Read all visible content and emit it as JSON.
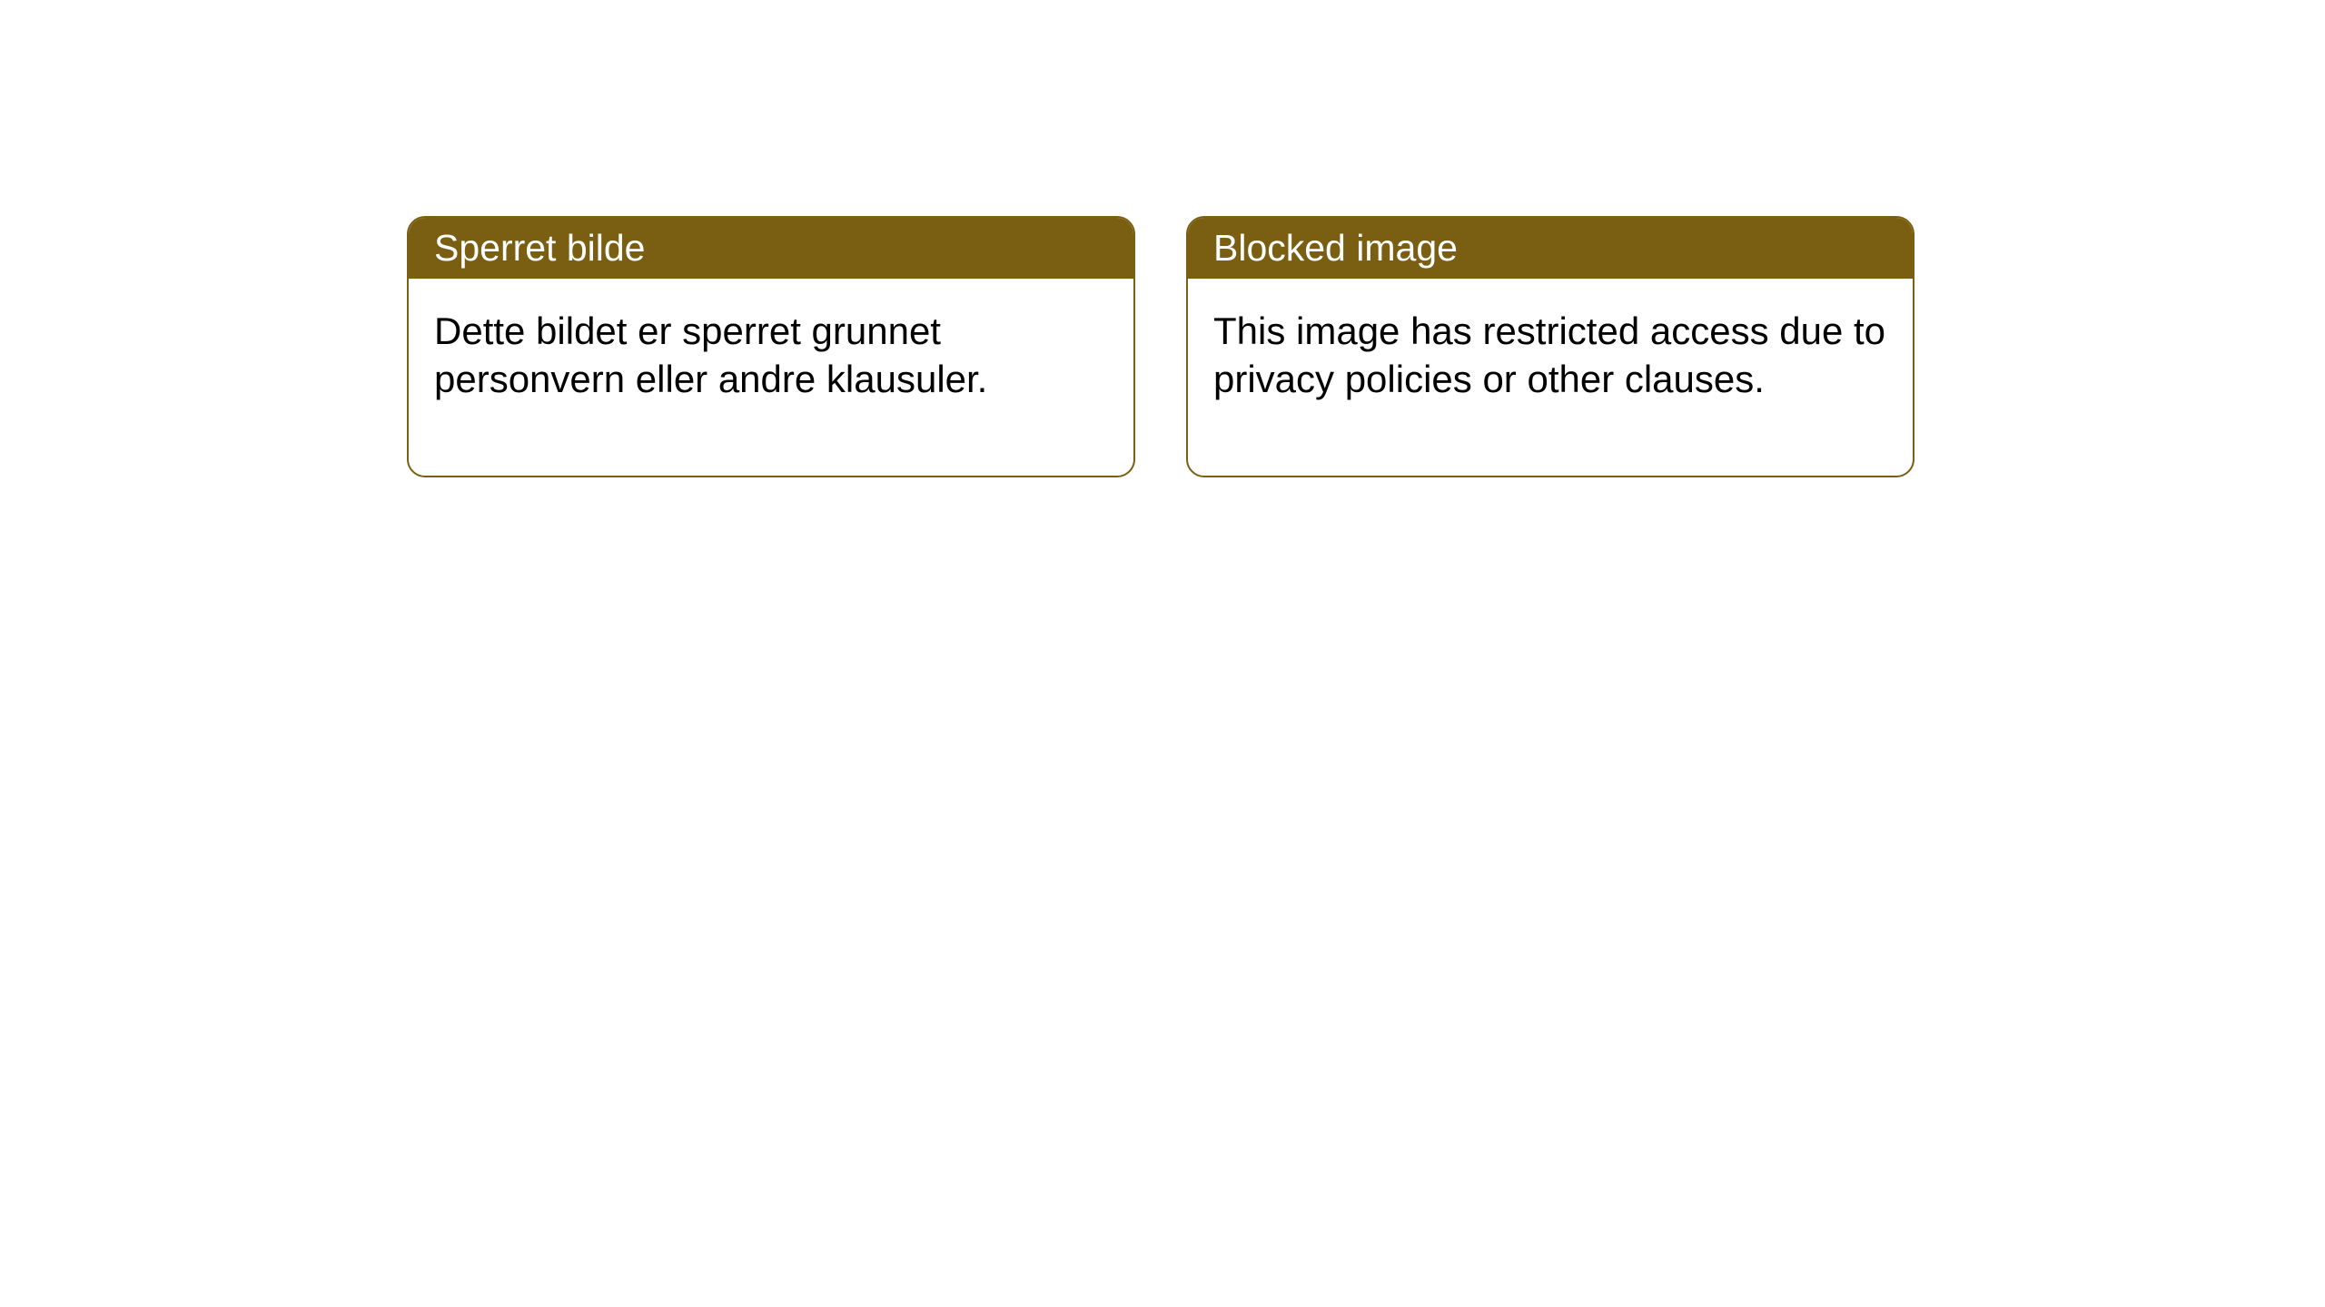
{
  "cards": [
    {
      "title": "Sperret bilde",
      "body": "Dette bildet er sperret grunnet personvern eller andre klausuler."
    },
    {
      "title": "Blocked image",
      "body": "This image has restricted access due to privacy policies or other clauses."
    }
  ],
  "styles": {
    "header_bg": "#7a5f13",
    "header_text_color": "#ffffff",
    "border_color": "#7a5f13",
    "body_bg": "#ffffff",
    "body_text_color": "#000000",
    "border_radius": 20,
    "title_fontsize": 41,
    "body_fontsize": 42
  }
}
